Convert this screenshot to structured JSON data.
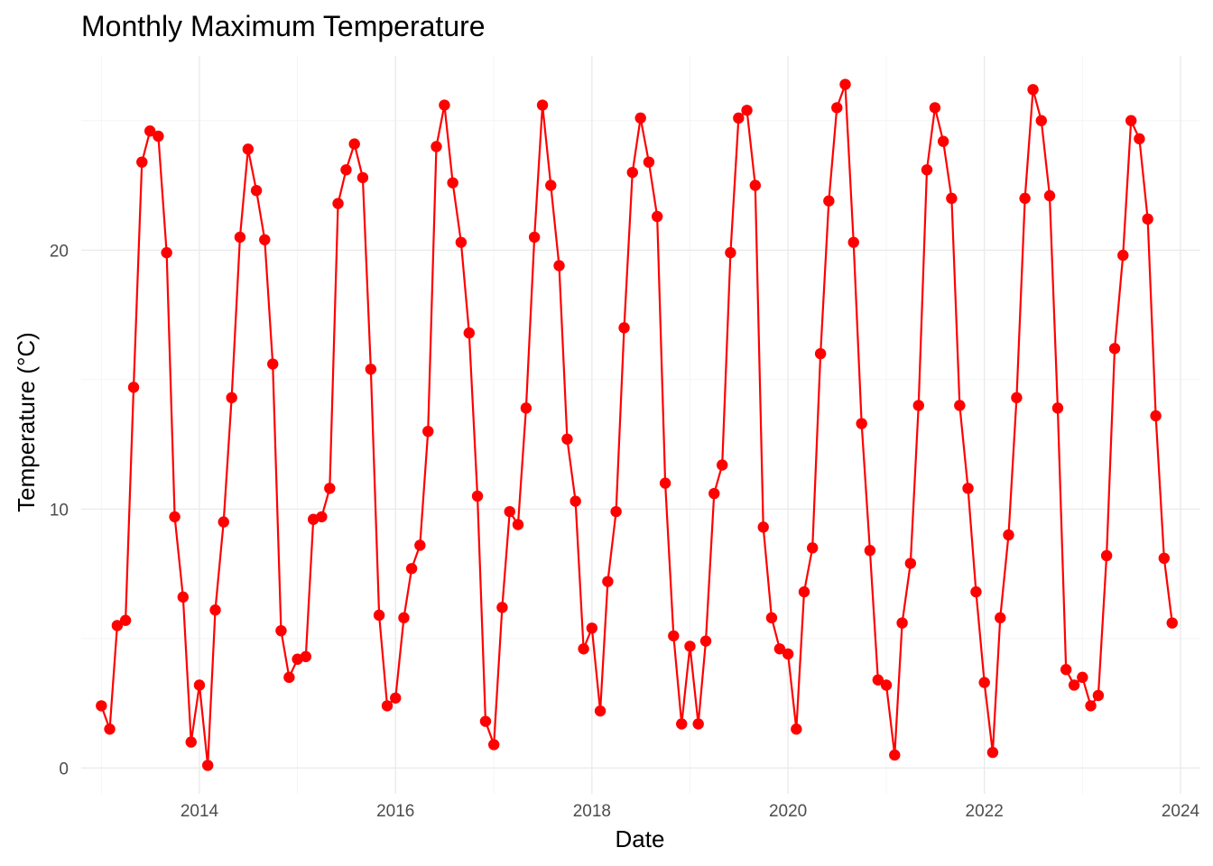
{
  "chart_data": {
    "type": "line",
    "title": "Monthly Maximum Temperature",
    "xlabel": "Date",
    "ylabel": "Temperature (°C)",
    "x_axis": {
      "type": "date",
      "range": [
        "2012-10-18",
        "2024-03-15"
      ],
      "ticks": [
        "2014",
        "2016",
        "2018",
        "2020",
        "2022",
        "2024"
      ]
    },
    "y_axis": {
      "range": [
        -1,
        27.5
      ],
      "ticks": [
        0,
        10,
        20
      ]
    },
    "grid": true,
    "legend": "none",
    "series": [
      {
        "color": "#ff0000",
        "start": "2013-01",
        "frequency": "monthly",
        "values": [
          2.4,
          1.5,
          5.5,
          5.7,
          14.7,
          23.4,
          24.6,
          24.4,
          19.9,
          9.7,
          6.6,
          1.0,
          3.2,
          0.1,
          6.1,
          9.5,
          14.3,
          20.5,
          23.9,
          22.3,
          20.4,
          15.6,
          5.3,
          3.5,
          4.2,
          4.3,
          9.6,
          9.7,
          10.8,
          21.8,
          23.1,
          24.1,
          22.8,
          15.4,
          5.9,
          2.4,
          2.7,
          5.8,
          7.7,
          8.6,
          13.0,
          24.0,
          25.6,
          22.6,
          20.3,
          16.8,
          10.5,
          1.8,
          0.9,
          6.2,
          9.9,
          9.4,
          13.9,
          20.5,
          25.6,
          22.5,
          19.4,
          12.7,
          10.3,
          4.6,
          5.4,
          2.2,
          7.2,
          9.9,
          17.0,
          23.0,
          25.1,
          23.4,
          21.3,
          11.0,
          5.1,
          1.7,
          4.7,
          1.7,
          4.9,
          10.6,
          11.7,
          19.9,
          25.1,
          25.4,
          22.5,
          9.3,
          5.8,
          4.6,
          4.4,
          1.5,
          6.8,
          8.5,
          16.0,
          21.9,
          25.5,
          26.4,
          20.3,
          13.3,
          8.4,
          3.4,
          3.2,
          0.5,
          5.6,
          7.9,
          14.0,
          23.1,
          25.5,
          24.2,
          22.0,
          14.0,
          10.8,
          6.8,
          3.3,
          0.6,
          5.8,
          9.0,
          14.3,
          22.0,
          26.2,
          25.0,
          22.1,
          13.9,
          3.8,
          3.2,
          3.5,
          2.4,
          2.8,
          8.2,
          16.2,
          19.8,
          25.0,
          24.3,
          21.2,
          13.6,
          8.1,
          5.6
        ]
      }
    ]
  }
}
